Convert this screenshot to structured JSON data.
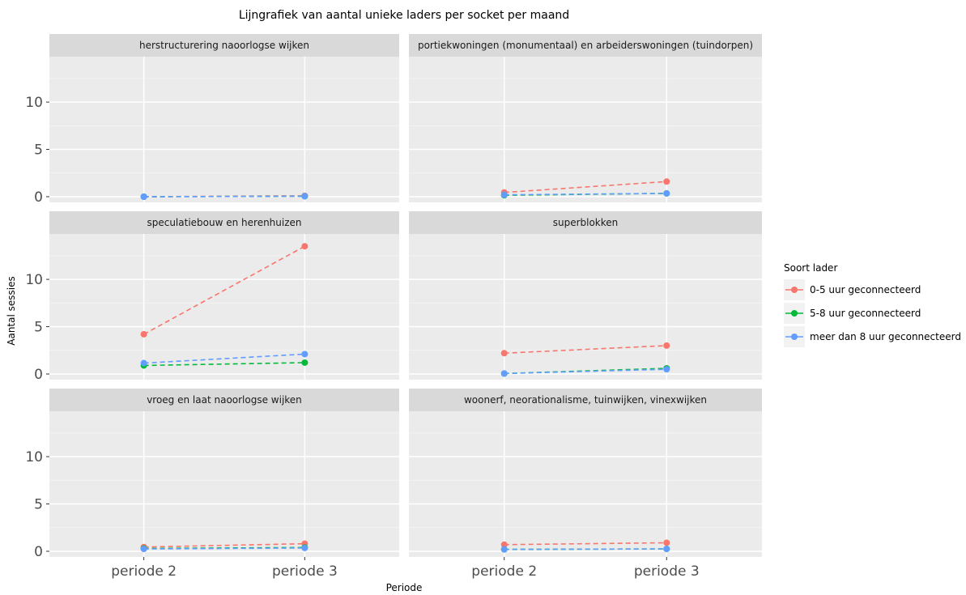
{
  "chart_data": {
    "type": "line",
    "title": "Lijngrafiek van aantal unieke laders per socket per maand",
    "xlabel": "Periode",
    "ylabel": "Aantal sessies",
    "categories": [
      "periode 2",
      "periode 3"
    ],
    "ylim": [
      -0.6,
      14.8
    ],
    "yticks": [
      0,
      5,
      10
    ],
    "grid": true,
    "legend": {
      "title": "Soort lader",
      "placement": "right",
      "entries": [
        {
          "name": "0-5 uur geconnecteerd",
          "color": "#F8766D"
        },
        {
          "name": "5-8 uur geconnecteerd",
          "color": "#00BA38"
        },
        {
          "name": "meer dan 8 uur geconnecteerd",
          "color": "#619CFF"
        }
      ]
    },
    "panels": [
      {
        "title": "herstructurering naoorlogse wijken",
        "series": [
          {
            "name": "0-5 uur geconnecteerd",
            "values": [
              0.0,
              0.1
            ]
          },
          {
            "name": "5-8 uur geconnecteerd",
            "values": [
              0.0,
              0.05
            ]
          },
          {
            "name": "meer dan 8 uur geconnecteerd",
            "values": [
              0.0,
              0.05
            ]
          }
        ]
      },
      {
        "title": "portiekwoningen (monumentaal) en arbeiderswoningen (tuindorpen)",
        "series": [
          {
            "name": "0-5 uur geconnecteerd",
            "values": [
              0.45,
              1.6
            ]
          },
          {
            "name": "5-8 uur geconnecteerd",
            "values": [
              0.15,
              0.35
            ]
          },
          {
            "name": "meer dan 8 uur geconnecteerd",
            "values": [
              0.2,
              0.35
            ]
          }
        ]
      },
      {
        "title": "speculatiebouw en herenhuizen",
        "series": [
          {
            "name": "0-5 uur geconnecteerd",
            "values": [
              4.2,
              13.5
            ]
          },
          {
            "name": "5-8 uur geconnecteerd",
            "values": [
              0.9,
              1.2
            ]
          },
          {
            "name": "meer dan 8 uur geconnecteerd",
            "values": [
              1.15,
              2.1
            ]
          }
        ]
      },
      {
        "title": "superblokken",
        "series": [
          {
            "name": "0-5 uur geconnecteerd",
            "values": [
              2.2,
              3.0
            ]
          },
          {
            "name": "5-8 uur geconnecteerd",
            "values": [
              0.05,
              0.6
            ]
          },
          {
            "name": "meer dan 8 uur geconnecteerd",
            "values": [
              0.05,
              0.5
            ]
          }
        ]
      },
      {
        "title": "vroeg en laat naoorlogse wijken",
        "series": [
          {
            "name": "0-5 uur geconnecteerd",
            "values": [
              0.45,
              0.8
            ]
          },
          {
            "name": "5-8 uur geconnecteerd",
            "values": [
              0.3,
              0.4
            ]
          },
          {
            "name": "meer dan 8 uur geconnecteerd",
            "values": [
              0.25,
              0.35
            ]
          }
        ]
      },
      {
        "title": "woonerf, neorationalisme, tuinwijken, vinexwijken",
        "series": [
          {
            "name": "0-5 uur geconnecteerd",
            "values": [
              0.7,
              0.9
            ]
          },
          {
            "name": "5-8 uur geconnecteerd",
            "values": [
              0.2,
              0.25
            ]
          },
          {
            "name": "meer dan 8 uur geconnecteerd",
            "values": [
              0.2,
              0.25
            ]
          }
        ]
      }
    ]
  }
}
